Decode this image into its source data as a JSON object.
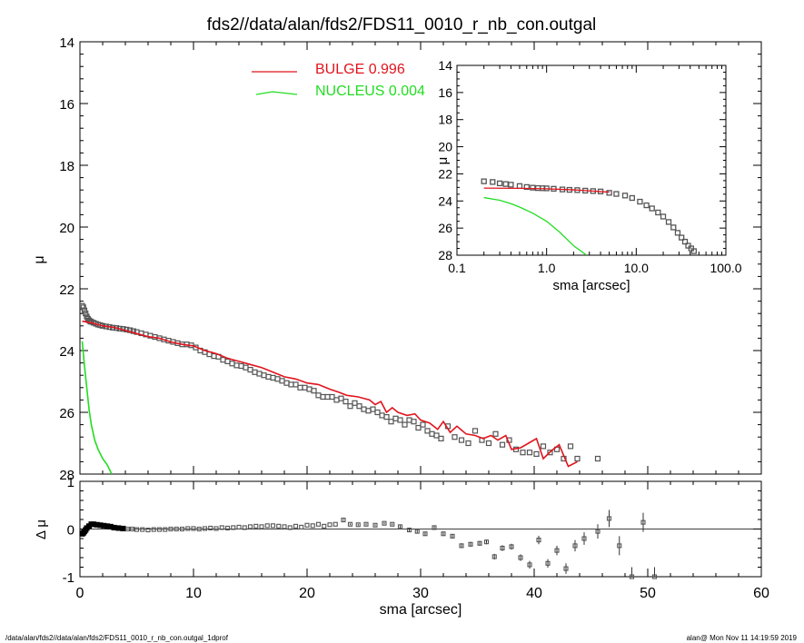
{
  "title": "fds2//data/alan/fds2/FDS11_0010_r_nb_con.outgal",
  "footer_left": "/data/alan/fds2//data/alan/fds2/FDS11_0010_r_nb_con.outgal_1dprof",
  "footer_right": "alan@  Mon Nov 11 14:19:59 2019",
  "colors": {
    "bulge": "#e0141e",
    "nucleus": "#22dd22",
    "data": "#555555",
    "axis": "#000000"
  },
  "chart_data": [
    {
      "type": "scatter",
      "panel": "main",
      "title": "fds2//data/alan/fds2/FDS11_0010_r_nb_con.outgal",
      "xlabel": "",
      "ylabel": "μ",
      "xlim": [
        0,
        60
      ],
      "ylim": [
        28,
        14
      ],
      "y_inverted": true,
      "x_ticks": [
        0,
        10,
        20,
        30,
        40,
        50,
        60
      ],
      "y_ticks": [
        14,
        16,
        18,
        20,
        22,
        24,
        26,
        28
      ],
      "legend": [
        {
          "name": "BULGE",
          "value": "0.996"
        },
        {
          "name": "NUCLEUS",
          "value": "0.004"
        }
      ],
      "legend_position": "top-center",
      "series": [
        {
          "name": "data",
          "style": "open-squares",
          "x": [
            0.2,
            0.3,
            0.4,
            0.5,
            0.6,
            0.7,
            0.8,
            0.9,
            1.0,
            1.2,
            1.4,
            1.6,
            1.8,
            2.0,
            2.3,
            2.6,
            2.9,
            3.2,
            3.5,
            3.8,
            4.1,
            4.4,
            4.7,
            5.0,
            5.4,
            5.8,
            6.2,
            6.6,
            7.0,
            7.4,
            7.8,
            8.2,
            8.6,
            9.0,
            9.4,
            9.8,
            10.2,
            10.6,
            11.0,
            11.4,
            11.8,
            12.2,
            12.6,
            13.0,
            13.4,
            13.8,
            14.2,
            14.6,
            15.0,
            15.4,
            15.8,
            16.2,
            16.6,
            17.0,
            17.4,
            17.8,
            18.2,
            18.6,
            19.0,
            19.4,
            19.8,
            20.2,
            20.6,
            21.0,
            21.4,
            21.8,
            22.2,
            22.6,
            23.0,
            23.4,
            23.8,
            24.2,
            24.6,
            25.0,
            25.4,
            25.8,
            26.2,
            26.6,
            27.0,
            27.4,
            27.8,
            28.2,
            28.6,
            29.0,
            29.4,
            29.8,
            30.2,
            30.6,
            31.0,
            31.4,
            31.8,
            32.4,
            33.0,
            33.6,
            34.2,
            34.8,
            35.4,
            36.0,
            36.6,
            37.2,
            37.8,
            38.4,
            39.0,
            39.6,
            40.2,
            40.8,
            41.4,
            42.0,
            42.6,
            43.2,
            43.8,
            45.6
          ],
          "y": [
            22.55,
            22.6,
            22.7,
            22.8,
            22.9,
            22.97,
            23.02,
            23.05,
            23.07,
            23.1,
            23.13,
            23.16,
            23.18,
            23.2,
            23.22,
            23.24,
            23.26,
            23.27,
            23.29,
            23.3,
            23.32,
            23.34,
            23.37,
            23.4,
            23.44,
            23.48,
            23.52,
            23.56,
            23.6,
            23.64,
            23.68,
            23.72,
            23.76,
            23.8,
            23.8,
            23.83,
            23.9,
            24.0,
            24.05,
            24.12,
            24.18,
            24.2,
            24.3,
            24.35,
            24.42,
            24.48,
            24.5,
            24.55,
            24.62,
            24.7,
            24.75,
            24.8,
            24.85,
            24.88,
            24.92,
            24.98,
            25.05,
            25.1,
            25.1,
            25.2,
            25.2,
            25.25,
            25.3,
            25.45,
            25.5,
            25.5,
            25.5,
            25.6,
            25.55,
            25.65,
            25.8,
            25.7,
            25.8,
            25.9,
            25.95,
            25.9,
            26.0,
            26.1,
            26.15,
            26.3,
            26.2,
            26.25,
            26.4,
            26.25,
            26.3,
            26.5,
            26.4,
            26.6,
            26.7,
            26.75,
            26.85,
            26.45,
            26.8,
            26.9,
            27.0,
            26.6,
            26.9,
            27.0,
            26.7,
            27.05,
            26.9,
            27.2,
            27.3,
            27.3,
            27.35,
            27.1,
            27.3,
            27.2,
            27.5,
            27.1,
            27.5,
            27.5
          ]
        },
        {
          "name": "BULGE",
          "style": "line",
          "x": [
            0.2,
            1.0,
            2.0,
            3.0,
            4.0,
            5.0,
            6.0,
            7.0,
            8.0,
            9.0,
            10.0,
            11.0,
            12.0,
            13.0,
            14.0,
            15.0,
            16.0,
            17.0,
            18.0,
            19.0,
            20.0,
            21.0,
            22.0,
            22.8,
            23.5,
            24.5,
            25.5,
            26.0,
            26.5,
            27.0,
            27.5,
            28.0,
            28.8,
            29.5,
            30.0,
            30.8,
            31.5,
            32.0,
            32.6,
            33.2,
            34.0,
            34.8,
            35.5,
            36.2,
            36.8,
            37.5,
            38.0,
            38.8,
            39.5,
            40.2,
            40.8,
            41.5,
            42.2,
            43.0,
            43.8
          ],
          "y": [
            23.05,
            23.1,
            23.2,
            23.25,
            23.35,
            23.45,
            23.55,
            23.6,
            23.72,
            23.8,
            23.85,
            24.0,
            24.1,
            24.25,
            24.35,
            24.45,
            24.55,
            24.7,
            24.85,
            24.92,
            25.05,
            25.1,
            25.25,
            25.35,
            25.45,
            25.5,
            25.6,
            25.75,
            25.65,
            26.0,
            25.85,
            26.0,
            26.1,
            26.05,
            26.25,
            26.35,
            26.55,
            26.3,
            26.65,
            26.45,
            26.7,
            26.75,
            26.85,
            26.75,
            26.9,
            26.75,
            27.2,
            27.15,
            27.0,
            26.85,
            27.5,
            27.25,
            27.05,
            27.75,
            27.6
          ]
        },
        {
          "name": "NUCLEUS",
          "style": "line",
          "x": [
            0.2,
            0.4,
            0.6,
            0.8,
            1.0,
            1.3,
            1.6,
            2.0,
            2.4,
            2.8
          ],
          "y": [
            23.7,
            24.5,
            25.2,
            25.9,
            26.4,
            26.9,
            27.2,
            27.5,
            27.7,
            28.0
          ]
        }
      ]
    },
    {
      "type": "scatter",
      "panel": "inset",
      "xlabel": "sma [arcsec]",
      "ylabel": "μ",
      "xscale": "log",
      "xlim": [
        0.1,
        100.0
      ],
      "ylim": [
        28,
        14
      ],
      "y_inverted": true,
      "x_tick_labels": [
        "0.1",
        "1.0",
        "10.0",
        "100.0"
      ],
      "y_ticks": [
        14,
        16,
        18,
        20,
        22,
        24,
        26,
        28
      ],
      "series": [
        {
          "name": "data",
          "style": "open-squares",
          "x": [
            0.2,
            0.25,
            0.3,
            0.35,
            0.4,
            0.5,
            0.6,
            0.7,
            0.8,
            0.9,
            1.0,
            1.2,
            1.5,
            1.8,
            2.2,
            2.7,
            3.3,
            4.0,
            5.0,
            6.0,
            7.5,
            9.0,
            11.0,
            13.0,
            15.0,
            17.5,
            20.0,
            23.0,
            26.0,
            29.0,
            32.0,
            35.0,
            38.0,
            41.0,
            44.0
          ],
          "y": [
            22.55,
            22.6,
            22.7,
            22.75,
            22.8,
            22.9,
            22.97,
            23.02,
            23.05,
            23.06,
            23.07,
            23.1,
            23.15,
            23.18,
            23.2,
            23.24,
            23.27,
            23.3,
            23.4,
            23.48,
            23.6,
            23.78,
            24.05,
            24.32,
            24.55,
            24.85,
            25.15,
            25.55,
            25.95,
            26.35,
            26.7,
            27.0,
            27.3,
            27.5,
            27.7
          ]
        },
        {
          "name": "BULGE",
          "style": "line",
          "x": [
            0.2,
            0.5,
            1.0,
            2.0,
            3.0,
            5.0
          ],
          "y": [
            23.05,
            23.07,
            23.1,
            23.18,
            23.25,
            23.35
          ]
        },
        {
          "name": "NUCLEUS",
          "style": "line",
          "x": [
            0.2,
            0.3,
            0.4,
            0.5,
            0.7,
            1.0,
            1.4,
            2.0,
            2.8
          ],
          "y": [
            23.75,
            23.95,
            24.2,
            24.45,
            24.9,
            25.5,
            26.3,
            27.3,
            28.0
          ]
        }
      ]
    },
    {
      "type": "scatter",
      "panel": "residual",
      "xlabel": "sma [arcsec]",
      "ylabel": "Δ μ",
      "xlim": [
        0,
        60
      ],
      "ylim": [
        -1.0,
        1.0
      ],
      "x_ticks": [
        0,
        10,
        20,
        30,
        40,
        50,
        60
      ],
      "y_ticks": [
        -1,
        0,
        1
      ],
      "zero_line": true,
      "series": [
        {
          "name": "residuals",
          "style": "open-squares-with-errorbars",
          "x": [
            0.2,
            0.3,
            0.4,
            0.5,
            0.6,
            0.8,
            1.0,
            1.2,
            1.5,
            1.8,
            2.1,
            2.4,
            2.7,
            3.0,
            3.4,
            3.8,
            4.2,
            4.6,
            5.0,
            5.5,
            6.0,
            6.5,
            7.0,
            7.5,
            8.0,
            8.5,
            9.0,
            9.5,
            10.0,
            10.5,
            11.0,
            11.5,
            12.0,
            12.5,
            13.0,
            13.5,
            14.0,
            14.5,
            15.0,
            15.5,
            16.0,
            16.5,
            17.0,
            17.5,
            18.0,
            18.5,
            19.0,
            19.5,
            20.0,
            20.5,
            21.0,
            21.5,
            22.0,
            22.5,
            23.2,
            23.8,
            24.5,
            25.2,
            26.0,
            26.8,
            27.5,
            28.2,
            29.0,
            29.7,
            30.4,
            31.2,
            32.0,
            32.8,
            33.6,
            34.4,
            35.2,
            35.8,
            36.5,
            37.2,
            38.0,
            38.8,
            39.6,
            40.4,
            41.2,
            42.0,
            42.8,
            43.6,
            44.4,
            45.6,
            46.6,
            47.5,
            48.6,
            49.6,
            50.6
          ],
          "y": [
            -0.1,
            -0.08,
            -0.05,
            -0.02,
            0.02,
            0.06,
            0.1,
            0.1,
            0.09,
            0.08,
            0.07,
            0.06,
            0.05,
            0.03,
            0.02,
            0.01,
            0.0,
            0.0,
            -0.01,
            -0.01,
            -0.02,
            -0.01,
            -0.01,
            -0.01,
            0.0,
            0.0,
            0.0,
            0.01,
            0.01,
            0.0,
            0.01,
            0.02,
            0.01,
            0.03,
            0.02,
            0.03,
            0.04,
            0.03,
            0.05,
            0.06,
            0.05,
            0.07,
            0.07,
            0.06,
            0.05,
            0.03,
            0.06,
            0.04,
            0.08,
            0.07,
            0.1,
            0.06,
            0.09,
            0.1,
            0.19,
            0.1,
            0.09,
            0.1,
            0.08,
            0.12,
            0.1,
            0.05,
            -0.02,
            -0.05,
            -0.1,
            0.03,
            -0.1,
            -0.15,
            -0.35,
            -0.32,
            -0.3,
            -0.27,
            -0.58,
            -0.4,
            -0.37,
            -0.6,
            -0.75,
            -0.23,
            -0.72,
            -0.45,
            -0.83,
            -0.35,
            -0.2,
            -0.05,
            0.22,
            -0.35,
            -1.0,
            0.14,
            -1.0
          ],
          "yerr": [
            0.01,
            0.01,
            0.01,
            0.01,
            0.01,
            0.01,
            0.01,
            0.01,
            0.01,
            0.01,
            0.01,
            0.01,
            0.01,
            0.01,
            0.01,
            0.01,
            0.01,
            0.01,
            0.01,
            0.01,
            0.01,
            0.01,
            0.01,
            0.01,
            0.01,
            0.01,
            0.01,
            0.01,
            0.01,
            0.01,
            0.01,
            0.01,
            0.01,
            0.01,
            0.01,
            0.01,
            0.01,
            0.01,
            0.01,
            0.01,
            0.01,
            0.01,
            0.01,
            0.01,
            0.01,
            0.01,
            0.01,
            0.01,
            0.01,
            0.01,
            0.01,
            0.01,
            0.01,
            0.01,
            0.02,
            0.02,
            0.02,
            0.02,
            0.02,
            0.02,
            0.02,
            0.03,
            0.03,
            0.03,
            0.03,
            0.03,
            0.03,
            0.04,
            0.05,
            0.05,
            0.05,
            0.05,
            0.06,
            0.06,
            0.06,
            0.07,
            0.08,
            0.09,
            0.09,
            0.1,
            0.11,
            0.12,
            0.13,
            0.15,
            0.18,
            0.2,
            0.2,
            0.2,
            0.2
          ]
        }
      ]
    }
  ]
}
